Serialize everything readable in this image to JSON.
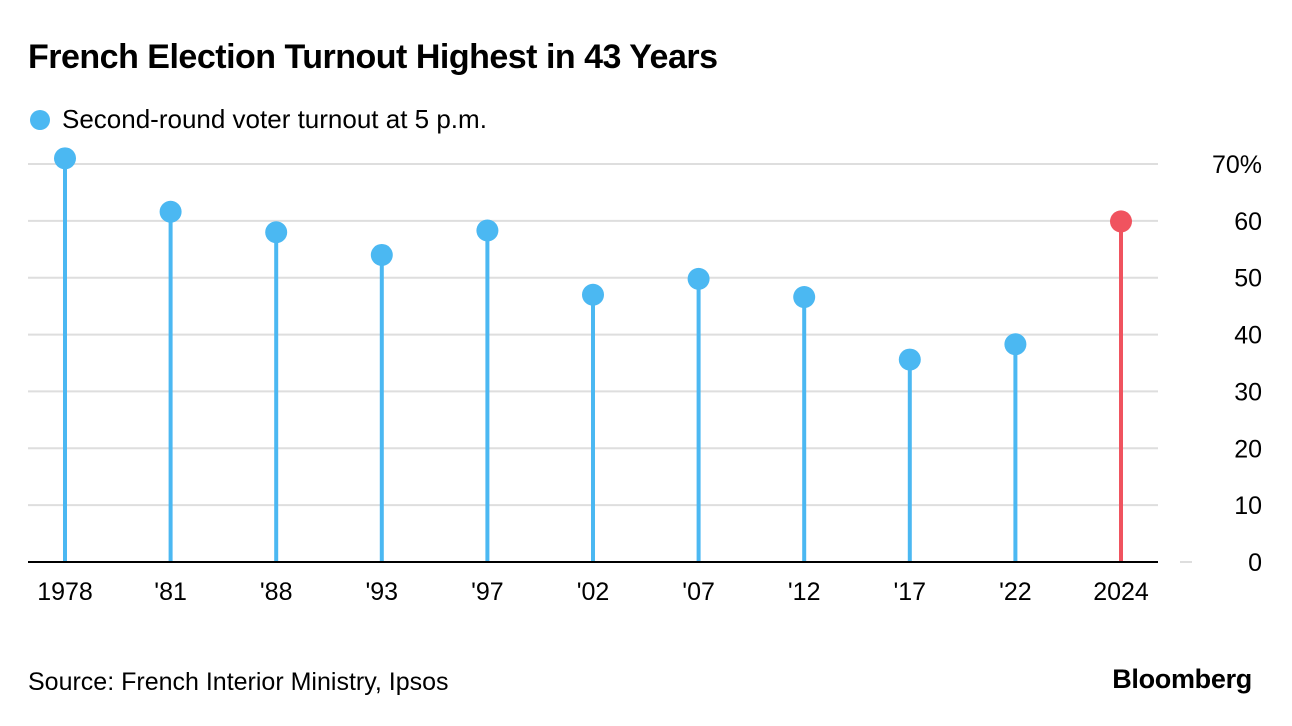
{
  "colors": {
    "series": "#4bb8f2",
    "highlight": "#f0535f",
    "grid": "#dedede",
    "axis": "#000000"
  },
  "chart_data": {
    "type": "lollipop",
    "title": "French Election Turnout Highest in 43 Years",
    "legend": "Second-round voter turnout at 5 p.m.",
    "categories": [
      "1978",
      "'81",
      "'88",
      "'93",
      "'97",
      "'02",
      "'07",
      "'12",
      "'17",
      "'22",
      "2024"
    ],
    "values": [
      71.0,
      61.6,
      58.0,
      54.0,
      58.3,
      47.0,
      49.8,
      46.6,
      35.6,
      38.3,
      59.9
    ],
    "highlight_index": 10,
    "y_ticks": [
      0,
      10,
      20,
      30,
      40,
      50,
      60,
      70
    ],
    "y_tick_labels": [
      "0",
      "10",
      "20",
      "30",
      "40",
      "50",
      "60",
      "70%"
    ],
    "ylim": [
      0,
      70
    ],
    "y_axis_side": "right",
    "grid": true,
    "xlabel": "",
    "ylabel": ""
  },
  "footer": {
    "source": "Source: French Interior Ministry, Ipsos",
    "logo": "Bloomberg"
  }
}
